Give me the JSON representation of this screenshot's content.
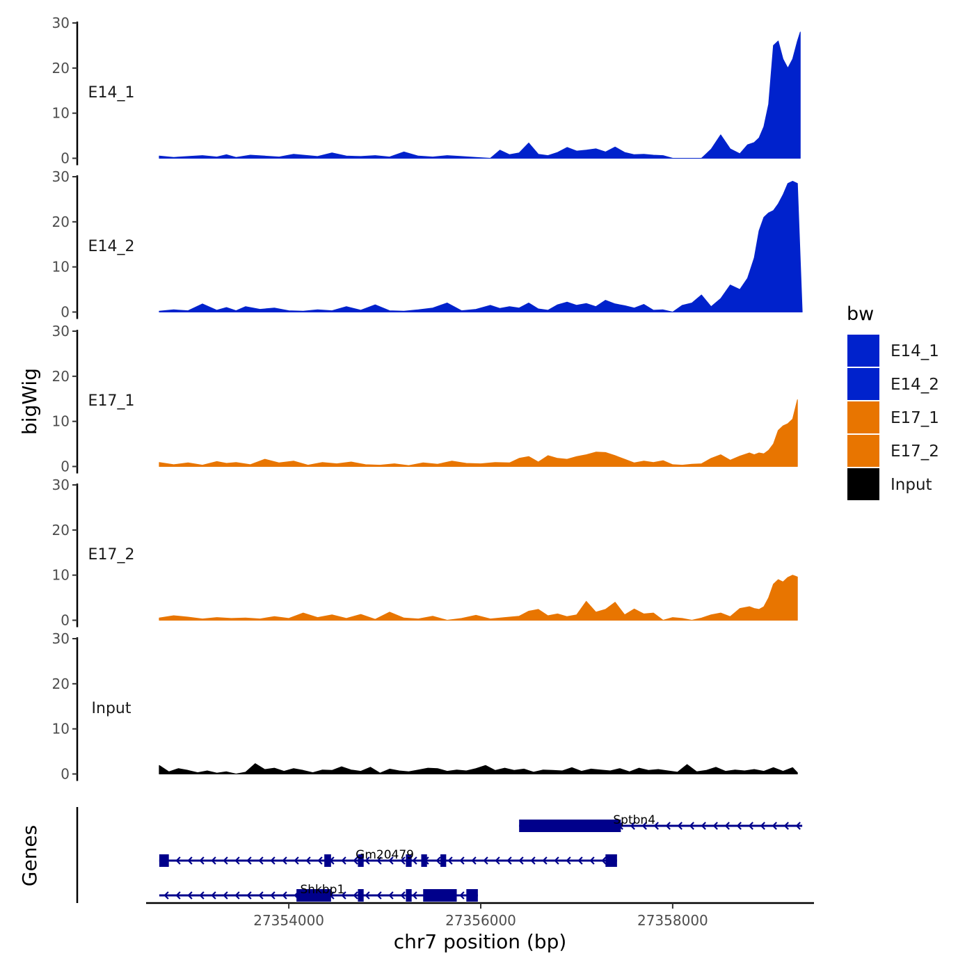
{
  "chart_data": {
    "type": "area",
    "ylabel": "bigWig",
    "xlabel": "chr7 position (bp)",
    "xlim": [
      27352600,
      27359400
    ],
    "xticks": [
      27354000,
      27356000,
      27358000
    ],
    "xtick_labels": [
      "27354000",
      "27356000",
      "27358000"
    ],
    "ylim": [
      0,
      30
    ],
    "yticks": [
      0,
      10,
      20,
      30
    ],
    "ytick_labels": [
      "0",
      "10",
      "20",
      "30"
    ],
    "legend": {
      "title": "bw",
      "position": "right",
      "entries": [
        {
          "label": "E14_1",
          "color": "#0022cc"
        },
        {
          "label": "E14_2",
          "color": "#0022cc"
        },
        {
          "label": "E17_1",
          "color": "#e87500"
        },
        {
          "label": "E17_2",
          "color": "#e87500"
        },
        {
          "label": "Input",
          "color": "#000000"
        }
      ]
    },
    "series": [
      {
        "name": "E14_1",
        "color": "#0022cc",
        "x": [
          27352650,
          27352800,
          27352950,
          27353100,
          27353250,
          27353350,
          27353450,
          27353600,
          27353750,
          27353900,
          27354050,
          27354200,
          27354300,
          27354450,
          27354600,
          27354750,
          27354900,
          27355050,
          27355200,
          27355350,
          27355500,
          27355650,
          27355800,
          27355950,
          27356100,
          27356200,
          27356300,
          27356400,
          27356500,
          27356600,
          27356700,
          27356800,
          27356900,
          27357000,
          27357100,
          27357200,
          27357300,
          27357400,
          27357500,
          27357600,
          27357700,
          27357800,
          27357900,
          27358000,
          27358100,
          27358200,
          27358300,
          27358400,
          27358500,
          27358600,
          27358700,
          27358780,
          27358850,
          27358900,
          27358950,
          27359000,
          27359050,
          27359100,
          27359150,
          27359200,
          27359250,
          27359300,
          27359330
        ],
        "values": [
          0.5,
          0.2,
          0.4,
          0.6,
          0.3,
          0.8,
          0.2,
          0.7,
          0.5,
          0.3,
          0.9,
          0.6,
          0.4,
          1.2,
          0.5,
          0.4,
          0.6,
          0.3,
          1.4,
          0.5,
          0.3,
          0.6,
          0.4,
          0.2,
          0.0,
          1.8,
          0.8,
          1.2,
          3.4,
          0.9,
          0.6,
          1.3,
          2.4,
          1.6,
          1.8,
          2.1,
          1.4,
          2.5,
          1.3,
          0.8,
          0.9,
          0.7,
          0.6,
          0.0,
          0.0,
          0.0,
          0.0,
          2.0,
          5.2,
          2.1,
          1.0,
          3.0,
          3.5,
          4.5,
          7.0,
          12.0,
          25.0,
          26.0,
          22.0,
          20.0,
          22.0,
          26.0,
          28.0
        ]
      },
      {
        "name": "E14_2",
        "color": "#0022cc",
        "x": [
          27352650,
          27352800,
          27352950,
          27353100,
          27353250,
          27353350,
          27353450,
          27353550,
          27353700,
          27353850,
          27354000,
          27354150,
          27354300,
          27354450,
          27354600,
          27354750,
          27354900,
          27355050,
          27355200,
          27355350,
          27355500,
          27355650,
          27355800,
          27355950,
          27356100,
          27356200,
          27356300,
          27356400,
          27356500,
          27356600,
          27356700,
          27356800,
          27356900,
          27357000,
          27357100,
          27357200,
          27357300,
          27357400,
          27357500,
          27357600,
          27357700,
          27357800,
          27357900,
          27358000,
          27358100,
          27358200,
          27358300,
          27358400,
          27358500,
          27358600,
          27358700,
          27358780,
          27358850,
          27358900,
          27358950,
          27359000,
          27359050,
          27359100,
          27359150,
          27359200,
          27359250,
          27359300,
          27359350
        ],
        "values": [
          0.2,
          0.5,
          0.3,
          1.8,
          0.4,
          1.0,
          0.3,
          1.2,
          0.6,
          0.9,
          0.3,
          0.2,
          0.5,
          0.3,
          1.2,
          0.4,
          1.6,
          0.3,
          0.2,
          0.5,
          0.9,
          2.0,
          0.3,
          0.6,
          1.5,
          0.8,
          1.2,
          0.9,
          2.0,
          0.7,
          0.4,
          1.6,
          2.2,
          1.5,
          1.9,
          1.2,
          2.6,
          1.8,
          1.4,
          0.9,
          1.7,
          0.4,
          0.5,
          0.0,
          1.5,
          2.0,
          3.8,
          1.2,
          3.0,
          6.0,
          5.0,
          7.5,
          12.0,
          18.0,
          21.0,
          22.0,
          22.5,
          24.0,
          26.0,
          28.5,
          29.0,
          28.5,
          0.0
        ]
      },
      {
        "name": "E17_1",
        "color": "#e87500",
        "x": [
          27352650,
          27352800,
          27352950,
          27353100,
          27353250,
          27353350,
          27353450,
          27353600,
          27353750,
          27353900,
          27354050,
          27354200,
          27354350,
          27354500,
          27354650,
          27354800,
          27354950,
          27355100,
          27355250,
          27355400,
          27355550,
          27355700,
          27355850,
          27356000,
          27356150,
          27356300,
          27356400,
          27356500,
          27356600,
          27356700,
          27356800,
          27356900,
          27357000,
          27357100,
          27357200,
          27357300,
          27357400,
          27357500,
          27357600,
          27357700,
          27357800,
          27357900,
          27358000,
          27358100,
          27358200,
          27358300,
          27358400,
          27358500,
          27358600,
          27358700,
          27358800,
          27358850,
          27358900,
          27358950,
          27359000,
          27359050,
          27359100,
          27359150,
          27359200,
          27359250,
          27359300
        ],
        "values": [
          0.9,
          0.4,
          0.8,
          0.3,
          1.1,
          0.7,
          0.9,
          0.4,
          1.6,
          0.8,
          1.2,
          0.3,
          0.9,
          0.6,
          1.0,
          0.4,
          0.3,
          0.6,
          0.2,
          0.8,
          0.5,
          1.2,
          0.7,
          0.6,
          0.9,
          0.8,
          1.8,
          2.2,
          1.0,
          2.4,
          1.8,
          1.6,
          2.2,
          2.6,
          3.2,
          3.1,
          2.4,
          1.6,
          0.8,
          1.2,
          0.9,
          1.3,
          0.4,
          0.3,
          0.5,
          0.6,
          1.8,
          2.6,
          1.4,
          2.3,
          3.0,
          2.6,
          3.0,
          2.8,
          3.6,
          5.0,
          8.0,
          9.0,
          9.5,
          10.5,
          14.8
        ]
      },
      {
        "name": "E17_2",
        "color": "#e87500",
        "x": [
          27352650,
          27352800,
          27352950,
          27353100,
          27353250,
          27353400,
          27353550,
          27353700,
          27353850,
          27354000,
          27354150,
          27354300,
          27354450,
          27354600,
          27354750,
          27354900,
          27355050,
          27355200,
          27355350,
          27355500,
          27355650,
          27355800,
          27355950,
          27356100,
          27356250,
          27356400,
          27356500,
          27356600,
          27356700,
          27356800,
          27356900,
          27357000,
          27357100,
          27357200,
          27357300,
          27357400,
          27357500,
          27357600,
          27357700,
          27357800,
          27357900,
          27358000,
          27358100,
          27358200,
          27358300,
          27358400,
          27358500,
          27358600,
          27358700,
          27358800,
          27358850,
          27358900,
          27358950,
          27359000,
          27359050,
          27359100,
          27359150,
          27359200,
          27359250,
          27359300
        ],
        "values": [
          0.5,
          1.0,
          0.7,
          0.3,
          0.6,
          0.4,
          0.5,
          0.3,
          0.8,
          0.4,
          1.6,
          0.6,
          1.2,
          0.4,
          1.3,
          0.2,
          1.8,
          0.5,
          0.3,
          0.9,
          0.0,
          0.4,
          1.1,
          0.3,
          0.6,
          0.9,
          2.0,
          2.4,
          1.0,
          1.4,
          0.8,
          1.2,
          4.2,
          1.8,
          2.4,
          4.0,
          1.2,
          2.5,
          1.4,
          1.6,
          0.0,
          0.6,
          0.4,
          0.0,
          0.5,
          1.2,
          1.6,
          0.8,
          2.6,
          3.0,
          2.6,
          2.4,
          3.0,
          5.0,
          8.0,
          9.0,
          8.5,
          9.5,
          10.0,
          9.6
        ]
      },
      {
        "name": "Input",
        "color": "#000000",
        "x": [
          27352650,
          27352750,
          27352850,
          27352950,
          27353050,
          27353150,
          27353250,
          27353350,
          27353450,
          27353550,
          27353650,
          27353750,
          27353850,
          27353950,
          27354050,
          27354150,
          27354250,
          27354350,
          27354450,
          27354550,
          27354650,
          27354750,
          27354850,
          27354950,
          27355050,
          27355150,
          27355250,
          27355350,
          27355450,
          27355550,
          27355650,
          27355750,
          27355850,
          27355950,
          27356050,
          27356150,
          27356250,
          27356350,
          27356450,
          27356550,
          27356650,
          27356750,
          27356850,
          27356950,
          27357050,
          27357150,
          27357250,
          27357350,
          27357450,
          27357550,
          27357650,
          27357750,
          27357850,
          27357950,
          27358050,
          27358150,
          27358250,
          27358350,
          27358450,
          27358550,
          27358650,
          27358750,
          27358850,
          27358950,
          27359050,
          27359150,
          27359250,
          27359300
        ],
        "values": [
          1.9,
          0.5,
          1.2,
          0.8,
          0.3,
          0.7,
          0.2,
          0.5,
          0.0,
          0.4,
          2.3,
          1.0,
          1.3,
          0.6,
          1.2,
          0.8,
          0.3,
          0.9,
          0.8,
          1.6,
          0.9,
          0.6,
          1.5,
          0.2,
          1.1,
          0.7,
          0.5,
          0.9,
          1.3,
          1.2,
          0.6,
          0.9,
          0.7,
          1.2,
          1.9,
          0.8,
          1.3,
          0.8,
          1.1,
          0.4,
          0.9,
          0.8,
          0.7,
          1.4,
          0.6,
          1.1,
          0.9,
          0.7,
          1.2,
          0.5,
          1.3,
          0.8,
          1.0,
          0.7,
          0.4,
          2.1,
          0.5,
          0.8,
          1.5,
          0.6,
          0.9,
          0.7,
          1.0,
          0.6,
          1.4,
          0.6,
          1.4,
          0.3
        ]
      }
    ],
    "genes_track": {
      "ylabel": "Genes",
      "color": "#00008b",
      "genes": [
        {
          "name": "Sptbn4",
          "strand": "-",
          "start": 27356400,
          "end": 27359350,
          "exons": [
            [
              27356400,
              27357460
            ]
          ],
          "label_x": 27357600,
          "row": 0
        },
        {
          "name": "Gm20479",
          "strand": "-",
          "start": 27352650,
          "end": 27357420,
          "exons": [
            [
              27352650,
              27352750
            ],
            [
              27354370,
              27354440
            ],
            [
              27354720,
              27354780
            ],
            [
              27355220,
              27355280
            ],
            [
              27355380,
              27355440
            ],
            [
              27355580,
              27355640
            ],
            [
              27357300,
              27357420
            ]
          ],
          "label_x": 27355000,
          "row": 1
        },
        {
          "name": "Shkbp1",
          "strand": "-",
          "start": 27352650,
          "end": 27355970,
          "exons": [
            [
              27354080,
              27354440
            ],
            [
              27354720,
              27354780
            ],
            [
              27355220,
              27355280
            ],
            [
              27355400,
              27355750
            ],
            [
              27355850,
              27355970
            ]
          ],
          "label_x": 27354350,
          "row": 2
        }
      ]
    }
  }
}
